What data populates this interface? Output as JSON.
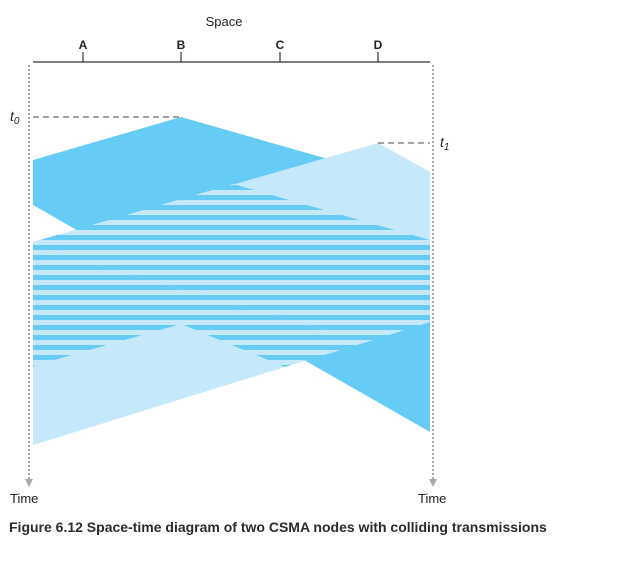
{
  "diagram": {
    "space_label": "Space",
    "time_label_left": "Time",
    "time_label_right": "Time",
    "nodes": [
      "A",
      "B",
      "C",
      "D"
    ],
    "time_markers": {
      "t0": {
        "base": "t",
        "sub": "0"
      },
      "t1": {
        "base": "t",
        "sub": "1"
      }
    },
    "colors": {
      "node_b_transmission": "#66ccf5",
      "node_d_transmission": "#c5e8fa",
      "collision_stripe_light": "#c5e8fa",
      "collision_stripe_dark": "#66ccf5",
      "axis": "#333333",
      "time_axis_dots": "#aaaaaa"
    }
  },
  "caption": "Figure 6.12 Space-time diagram of two CSMA nodes with colliding transmissions"
}
